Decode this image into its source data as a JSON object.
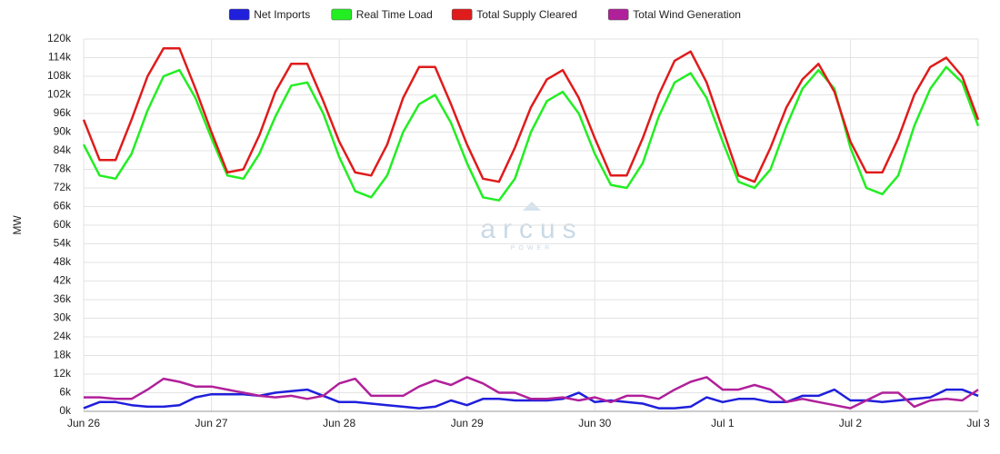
{
  "chart_data": {
    "type": "line",
    "watermark": "arcus",
    "watermark_sub": "POWER",
    "y_label": "MW",
    "legend": "top",
    "grid": true,
    "x": [
      0,
      3,
      6,
      9,
      12,
      15,
      18,
      21,
      24,
      27,
      30,
      33,
      36,
      39,
      42,
      45,
      48,
      51,
      54,
      57,
      60,
      63,
      66,
      69,
      72,
      75,
      78,
      81,
      84,
      87,
      90,
      93,
      96,
      99,
      102,
      105,
      108,
      111,
      114,
      117,
      120,
      123,
      126,
      129,
      132,
      135,
      138,
      141,
      144,
      147,
      150,
      153,
      156,
      159,
      162,
      165,
      168
    ],
    "xlim": [
      0,
      168
    ],
    "xticks": [
      {
        "value": 0,
        "label": "Jun 26"
      },
      {
        "value": 24,
        "label": "Jun 27"
      },
      {
        "value": 48,
        "label": "Jun 28"
      },
      {
        "value": 72,
        "label": "Jun 29"
      },
      {
        "value": 96,
        "label": "Jun 30"
      },
      {
        "value": 120,
        "label": "Jul 1"
      },
      {
        "value": 144,
        "label": "Jul 2"
      },
      {
        "value": 168,
        "label": "Jul 3"
      }
    ],
    "ylim": [
      0,
      120000
    ],
    "yticks": [
      {
        "value": 0,
        "label": "0k"
      },
      {
        "value": 6000,
        "label": "6k"
      },
      {
        "value": 12000,
        "label": "12k"
      },
      {
        "value": 18000,
        "label": "18k"
      },
      {
        "value": 24000,
        "label": "24k"
      },
      {
        "value": 30000,
        "label": "30k"
      },
      {
        "value": 36000,
        "label": "36k"
      },
      {
        "value": 42000,
        "label": "42k"
      },
      {
        "value": 48000,
        "label": "48k"
      },
      {
        "value": 54000,
        "label": "54k"
      },
      {
        "value": 60000,
        "label": "60k"
      },
      {
        "value": 66000,
        "label": "66k"
      },
      {
        "value": 72000,
        "label": "72k"
      },
      {
        "value": 78000,
        "label": "78k"
      },
      {
        "value": 84000,
        "label": "84k"
      },
      {
        "value": 90000,
        "label": "90k"
      },
      {
        "value": 96000,
        "label": "96k"
      },
      {
        "value": 102000,
        "label": "102k"
      },
      {
        "value": 108000,
        "label": "108k"
      },
      {
        "value": 114000,
        "label": "114k"
      },
      {
        "value": 120000,
        "label": "120k"
      }
    ],
    "series": [
      {
        "name": "Net Imports",
        "color": "#1f1fdc",
        "values": [
          1000,
          3000,
          3000,
          2000,
          1500,
          1500,
          2000,
          4500,
          5500,
          5500,
          5500,
          5000,
          6000,
          6500,
          7000,
          5000,
          3000,
          3000,
          2500,
          2000,
          1500,
          1000,
          1500,
          3500,
          2000,
          4000,
          4000,
          3500,
          3500,
          3500,
          4000,
          6000,
          3000,
          3500,
          3000,
          2500,
          1000,
          1000,
          1500,
          4500,
          3000,
          4000,
          4000,
          3000,
          3000,
          5000,
          5000,
          7000,
          3500,
          3500,
          3000,
          3500,
          4000,
          4500,
          7000,
          7000,
          5000
        ]
      },
      {
        "name": "Real Time Load",
        "color": "#22ee22",
        "values": [
          86000,
          76000,
          75000,
          83000,
          97000,
          108000,
          110000,
          101000,
          88000,
          76000,
          75000,
          83000,
          95000,
          105000,
          106000,
          96000,
          82000,
          71000,
          69000,
          76000,
          90000,
          99000,
          102000,
          93000,
          80000,
          69000,
          68000,
          75000,
          90000,
          100000,
          103000,
          96000,
          83000,
          73000,
          72000,
          80000,
          95000,
          106000,
          109000,
          101000,
          87000,
          74000,
          72000,
          78000,
          92000,
          104000,
          110000,
          104000,
          85000,
          72000,
          70000,
          76000,
          92000,
          104000,
          111000,
          106000,
          92000
        ]
      },
      {
        "name": "Total Supply Cleared",
        "color": "#e01b1b",
        "values": [
          94000,
          81000,
          81000,
          94000,
          108000,
          117000,
          117000,
          104000,
          90000,
          77000,
          78000,
          89000,
          103000,
          112000,
          112000,
          100000,
          87000,
          77000,
          76000,
          86000,
          101000,
          111000,
          111000,
          99000,
          86000,
          75000,
          74000,
          85000,
          98000,
          107000,
          110000,
          101000,
          88000,
          76000,
          76000,
          88000,
          102000,
          113000,
          116000,
          106000,
          91000,
          76000,
          74000,
          85000,
          98000,
          107000,
          112000,
          103000,
          87000,
          77000,
          77000,
          88000,
          102000,
          111000,
          114000,
          108000,
          94000
        ]
      },
      {
        "name": "Total Wind Generation",
        "color": "#b0209a",
        "values": [
          4500,
          4500,
          4000,
          4000,
          7000,
          10500,
          9500,
          8000,
          8000,
          7000,
          6000,
          5000,
          4500,
          5000,
          4000,
          5000,
          9000,
          10500,
          5000,
          5000,
          5000,
          8000,
          10000,
          8500,
          11000,
          9000,
          6000,
          6000,
          4000,
          4000,
          4500,
          3500,
          4500,
          3000,
          5000,
          5000,
          4000,
          7000,
          9500,
          11000,
          7000,
          7000,
          8500,
          7000,
          3000,
          4000,
          3000,
          2000,
          1000,
          3500,
          6000,
          6000,
          1500,
          3500,
          4000,
          3500,
          7000
        ]
      }
    ]
  }
}
